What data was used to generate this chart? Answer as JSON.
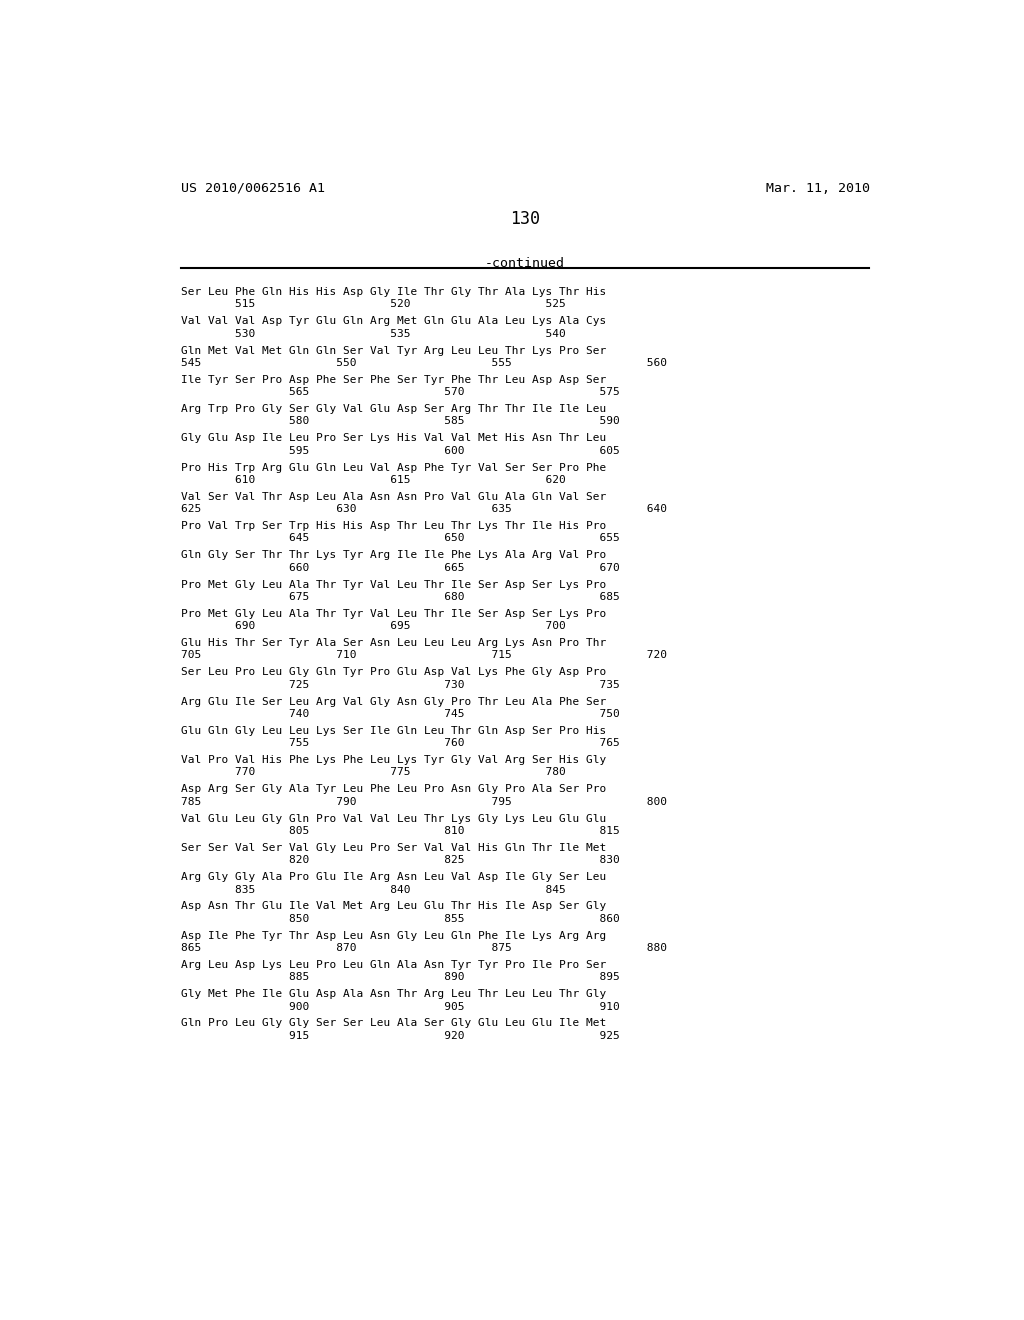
{
  "header_left": "US 2010/0062516 A1",
  "header_right": "Mar. 11, 2010",
  "page_number": "130",
  "continued_label": "-continued",
  "background_color": "#ffffff",
  "text_color": "#000000",
  "blocks": [
    [
      "        515                    520                    525",
      "Ser Leu Phe Gln His His Asp Gly Ile Thr Gly Thr Ala Lys Thr His"
    ],
    [
      "        530                    535                    540",
      "Val Val Val Asp Tyr Glu Gln Arg Met Gln Glu Ala Leu Lys Ala Cys"
    ],
    [
      "545                    550                    555                    560",
      "Gln Met Val Met Gln Gln Ser Val Tyr Arg Leu Leu Thr Lys Pro Ser"
    ],
    [
      "                565                    570                    575",
      "Ile Tyr Ser Pro Asp Phe Ser Phe Ser Tyr Phe Thr Leu Asp Asp Ser"
    ],
    [
      "                580                    585                    590",
      "Arg Trp Pro Gly Ser Gly Val Glu Asp Ser Arg Thr Thr Ile Ile Leu"
    ],
    [
      "                595                    600                    605",
      "Gly Glu Asp Ile Leu Pro Ser Lys His Val Val Met His Asn Thr Leu"
    ],
    [
      "        610                    615                    620",
      "Pro His Trp Arg Glu Gln Leu Val Asp Phe Tyr Val Ser Ser Pro Phe"
    ],
    [
      "625                    630                    635                    640",
      "Val Ser Val Thr Asp Leu Ala Asn Asn Pro Val Glu Ala Gln Val Ser"
    ],
    [
      "                645                    650                    655",
      "Pro Val Trp Ser Trp His His Asp Thr Leu Thr Lys Thr Ile His Pro"
    ],
    [
      "                660                    665                    670",
      "Gln Gly Ser Thr Thr Lys Tyr Arg Ile Ile Phe Lys Ala Arg Val Pro"
    ],
    [
      "                675                    680                    685",
      "Pro Met Gly Leu Ala Thr Tyr Val Leu Thr Ile Ser Asp Ser Lys Pro"
    ],
    [
      "        690                    695                    700",
      "Pro Met Gly Leu Ala Thr Tyr Val Leu Thr Ile Ser Asp Ser Lys Pro"
    ],
    [
      "705                    710                    715                    720",
      "Glu His Thr Ser Tyr Ala Ser Asn Leu Leu Leu Arg Lys Asn Pro Thr"
    ],
    [
      "                725                    730                    735",
      "Ser Leu Pro Leu Gly Gln Tyr Pro Glu Asp Val Lys Phe Gly Asp Pro"
    ],
    [
      "                740                    745                    750",
      "Arg Glu Ile Ser Leu Arg Val Gly Asn Gly Pro Thr Leu Ala Phe Ser"
    ],
    [
      "                755                    760                    765",
      "Glu Gln Gly Leu Leu Lys Ser Ile Gln Leu Thr Gln Asp Ser Pro His"
    ],
    [
      "        770                    775                    780",
      "Val Pro Val His Phe Lys Phe Leu Lys Tyr Gly Val Arg Ser His Gly"
    ],
    [
      "785                    790                    795                    800",
      "Asp Arg Ser Gly Ala Tyr Leu Phe Leu Pro Asn Gly Pro Ala Ser Pro"
    ],
    [
      "                805                    810                    815",
      "Val Glu Leu Gly Gln Pro Val Val Leu Thr Lys Gly Lys Leu Glu Glu"
    ],
    [
      "                820                    825                    830",
      "Ser Ser Val Ser Val Gly Leu Pro Ser Val Val His Gln Thr Ile Met"
    ],
    [
      "        835                    840                    845",
      "Arg Gly Gly Ala Pro Glu Ile Arg Asn Leu Val Asp Ile Gly Ser Leu"
    ],
    [
      "                850                    855                    860",
      "Asp Asn Thr Glu Ile Val Met Arg Leu Glu Thr His Ile Asp Ser Gly"
    ],
    [
      "865                    870                    875                    880",
      "Asp Ile Phe Tyr Thr Asp Leu Asn Gly Leu Gln Phe Ile Lys Arg Arg"
    ],
    [
      "                885                    890                    895",
      "Arg Leu Asp Lys Leu Pro Leu Gln Ala Asn Tyr Tyr Pro Ile Pro Ser"
    ],
    [
      "                900                    905                    910",
      "Gly Met Phe Ile Glu Asp Ala Asn Thr Arg Leu Thr Leu Leu Thr Gly"
    ],
    [
      "                915                    920                    925",
      "Gln Pro Leu Gly Gly Ser Ser Leu Ala Ser Gly Glu Leu Glu Ile Met"
    ]
  ]
}
